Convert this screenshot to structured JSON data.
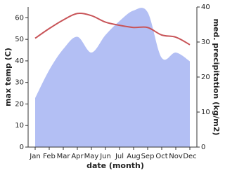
{
  "chart_data": {
    "type": "line",
    "categories": [
      "Jan",
      "Feb",
      "Mar",
      "Apr",
      "May",
      "Jun",
      "Jul",
      "Aug",
      "Sep",
      "Oct",
      "Nov",
      "Dec"
    ],
    "x_label": "date (month)",
    "y_label": "max temp (C)",
    "y2_label": "med. precipitation (kg/m2)",
    "series": [
      {
        "name": "max temp",
        "type": "line",
        "color": "#c85458",
        "values": [
          50.5,
          55,
          59,
          62,
          61,
          58,
          56.5,
          55.5,
          55.5,
          52,
          51,
          47.5
        ]
      },
      {
        "name": "med. precipitation",
        "type": "area",
        "axis": "y2",
        "color": "#b3bff4",
        "values": [
          14,
          22,
          28,
          31.5,
          27,
          32,
          36,
          39,
          38.5,
          25.5,
          27,
          24.5
        ]
      }
    ],
    "ylim": [
      0,
      65
    ],
    "yticks": [
      0,
      10,
      20,
      30,
      40,
      50,
      60
    ],
    "y2lim": [
      0,
      40
    ],
    "y2ticks": [
      0,
      10,
      20,
      30,
      40
    ]
  }
}
